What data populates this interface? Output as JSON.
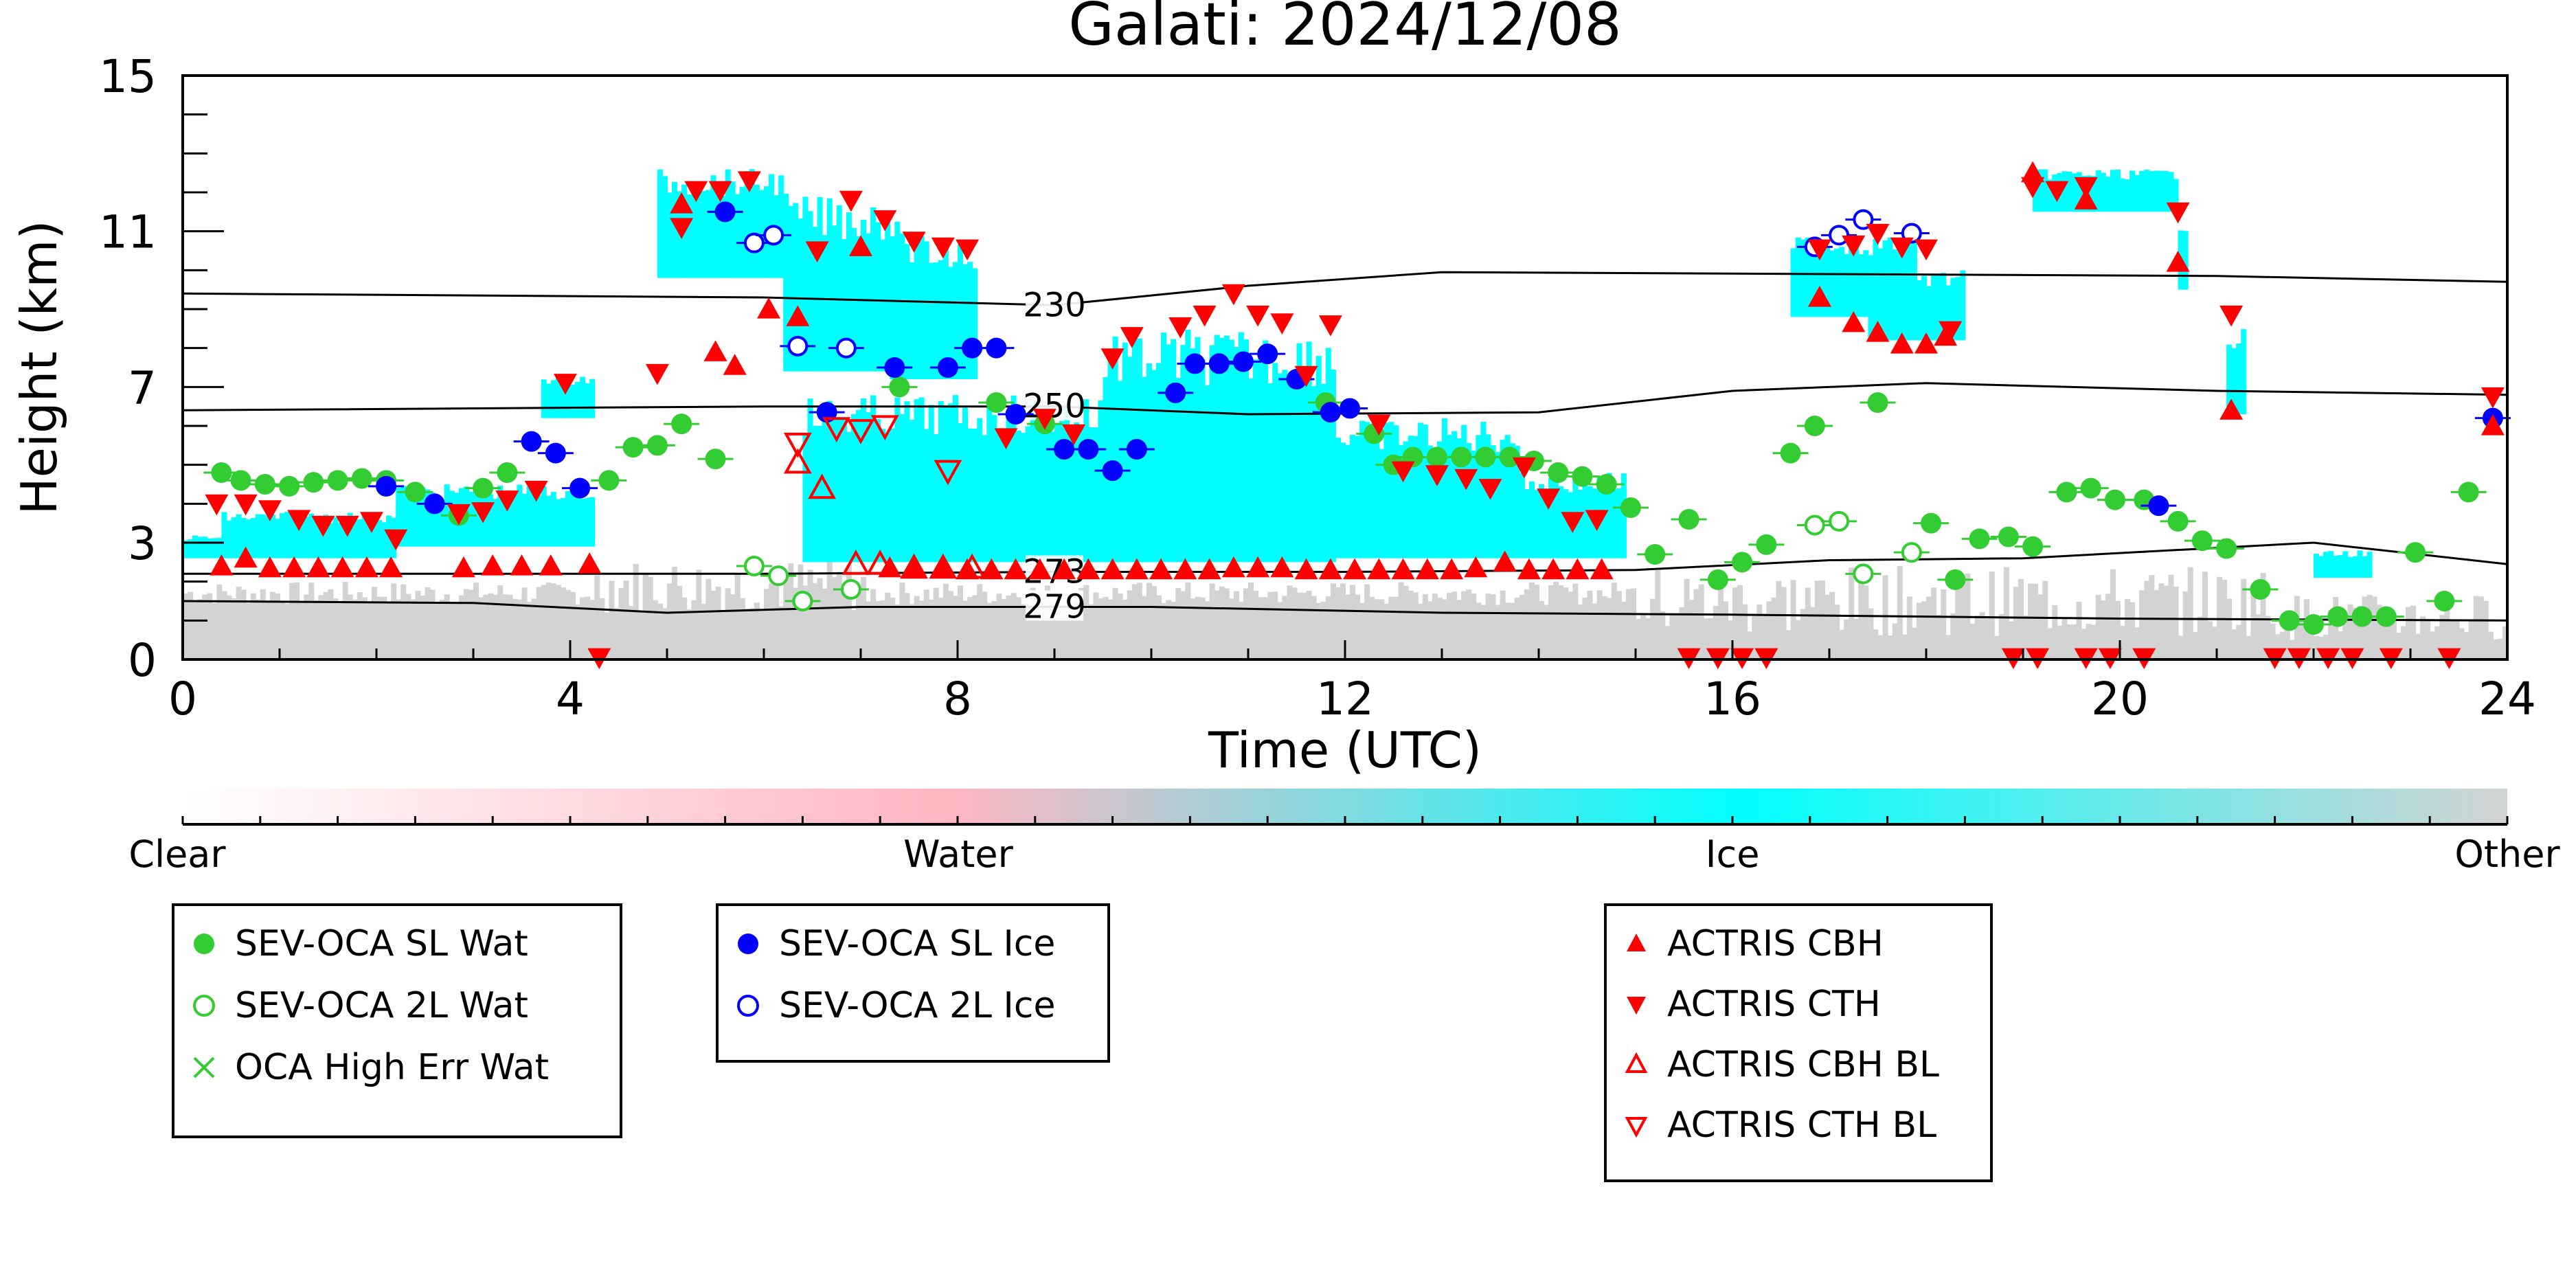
{
  "chart_data": {
    "type": "scatter",
    "title": "Galati: 2024/12/08",
    "xlabel": "Time (UTC)",
    "ylabel": "Height (km)",
    "xlim": [
      0,
      24
    ],
    "ylim": [
      0,
      15
    ],
    "x_ticks": [
      "0",
      "4",
      "8",
      "12",
      "16",
      "20",
      "24"
    ],
    "y_ticks": [
      "0",
      "3",
      "7",
      "11",
      "15"
    ],
    "grid": false,
    "background_field": "cloud classification (clear / water / ice / other)",
    "colorbar": {
      "labels": [
        "Clear",
        "Water",
        "Ice",
        "Other"
      ],
      "colors": [
        "#ffffff",
        "#ffb6c1",
        "#00ffff",
        "#d3d3d3"
      ]
    },
    "isotherms": [
      {
        "label": "230",
        "points": [
          [
            0,
            9.4
          ],
          [
            6,
            9.3
          ],
          [
            9,
            9.1
          ],
          [
            11,
            9.6
          ],
          [
            13,
            9.95
          ],
          [
            17,
            9.9
          ],
          [
            21,
            9.85
          ],
          [
            24,
            9.7
          ]
        ]
      },
      {
        "label": "250",
        "points": [
          [
            0,
            6.4
          ],
          [
            6,
            6.5
          ],
          [
            9,
            6.5
          ],
          [
            11,
            6.3
          ],
          [
            14,
            6.35
          ],
          [
            16,
            6.9
          ],
          [
            18,
            7.1
          ],
          [
            21,
            6.9
          ],
          [
            24,
            6.8
          ]
        ]
      },
      {
        "label": "273",
        "points": [
          [
            0,
            2.2
          ],
          [
            6,
            2.2
          ],
          [
            9,
            2.25
          ],
          [
            12,
            2.25
          ],
          [
            15,
            2.3
          ],
          [
            17,
            2.55
          ],
          [
            19,
            2.6
          ],
          [
            22,
            3.0
          ],
          [
            24,
            2.45
          ]
        ]
      },
      {
        "label": "279",
        "points": [
          [
            0,
            1.5
          ],
          [
            3,
            1.45
          ],
          [
            5,
            1.2
          ],
          [
            7,
            1.35
          ],
          [
            10,
            1.35
          ],
          [
            13,
            1.2
          ],
          [
            16,
            1.15
          ],
          [
            20,
            1.05
          ],
          [
            24,
            1.0
          ]
        ]
      }
    ],
    "series": [
      {
        "name": "SEV-OCA SL Wat",
        "color": "#33cc33",
        "marker": "filled-circle",
        "points": [
          [
            0.4,
            4.8
          ],
          [
            0.6,
            4.6
          ],
          [
            0.85,
            4.5
          ],
          [
            1.1,
            4.45
          ],
          [
            1.35,
            4.55
          ],
          [
            1.6,
            4.6
          ],
          [
            1.85,
            4.65
          ],
          [
            2.1,
            4.6
          ],
          [
            2.4,
            4.3
          ],
          [
            2.85,
            3.7
          ],
          [
            3.1,
            4.4
          ],
          [
            3.35,
            4.8
          ],
          [
            4.4,
            4.6
          ],
          [
            4.65,
            5.45
          ],
          [
            4.9,
            5.5
          ],
          [
            5.15,
            6.05
          ],
          [
            5.5,
            5.15
          ],
          [
            7.4,
            7.0
          ],
          [
            8.4,
            6.6
          ],
          [
            8.9,
            6.05
          ],
          [
            11.8,
            6.6
          ],
          [
            12.3,
            5.8
          ],
          [
            12.5,
            5.0
          ],
          [
            12.7,
            5.2
          ],
          [
            12.95,
            5.2
          ],
          [
            13.2,
            5.2
          ],
          [
            13.45,
            5.2
          ],
          [
            13.7,
            5.2
          ],
          [
            13.95,
            5.1
          ],
          [
            14.2,
            4.8
          ],
          [
            14.45,
            4.7
          ],
          [
            14.7,
            4.5
          ],
          [
            14.95,
            3.9
          ],
          [
            15.2,
            2.7
          ],
          [
            15.55,
            3.6
          ],
          [
            15.85,
            2.05
          ],
          [
            16.1,
            2.5
          ],
          [
            16.35,
            2.95
          ],
          [
            16.6,
            5.3
          ],
          [
            16.85,
            6.0
          ],
          [
            17.5,
            6.6
          ],
          [
            18.05,
            3.5
          ],
          [
            18.3,
            2.05
          ],
          [
            18.55,
            3.1
          ],
          [
            18.85,
            3.15
          ],
          [
            19.1,
            2.9
          ],
          [
            19.45,
            4.3
          ],
          [
            19.7,
            4.4
          ],
          [
            19.95,
            4.1
          ],
          [
            20.25,
            4.1
          ],
          [
            20.6,
            3.55
          ],
          [
            20.85,
            3.05
          ],
          [
            21.1,
            2.85
          ],
          [
            21.45,
            1.8
          ],
          [
            21.75,
            1.0
          ],
          [
            22.0,
            0.9
          ],
          [
            22.25,
            1.1
          ],
          [
            22.5,
            1.1
          ],
          [
            22.75,
            1.1
          ],
          [
            23.05,
            2.75
          ],
          [
            23.35,
            1.5
          ],
          [
            23.6,
            4.3
          ]
        ]
      },
      {
        "name": "SEV-OCA 2L Wat",
        "color": "#33cc33",
        "marker": "open-circle",
        "points": [
          [
            5.9,
            2.4
          ],
          [
            6.15,
            2.15
          ],
          [
            6.4,
            1.5
          ],
          [
            6.9,
            1.8
          ],
          [
            16.85,
            3.45
          ],
          [
            17.1,
            3.55
          ],
          [
            17.35,
            2.2
          ],
          [
            17.85,
            2.75
          ]
        ]
      },
      {
        "name": "OCA High Err Wat",
        "color": "#33cc33",
        "marker": "x",
        "points": []
      },
      {
        "name": "SEV-OCA SL Ice",
        "color": "#0000ff",
        "marker": "filled-circle",
        "points": [
          [
            2.1,
            4.45
          ],
          [
            2.6,
            4.0
          ],
          [
            3.6,
            5.6
          ],
          [
            3.85,
            5.3
          ],
          [
            4.1,
            4.4
          ],
          [
            5.6,
            11.5
          ],
          [
            6.65,
            6.35
          ],
          [
            7.35,
            7.5
          ],
          [
            7.9,
            7.5
          ],
          [
            8.15,
            8.0
          ],
          [
            8.4,
            8.0
          ],
          [
            8.6,
            6.3
          ],
          [
            9.1,
            5.4
          ],
          [
            9.35,
            5.4
          ],
          [
            9.6,
            4.85
          ],
          [
            9.85,
            5.4
          ],
          [
            10.25,
            6.85
          ],
          [
            10.45,
            7.6
          ],
          [
            10.7,
            7.6
          ],
          [
            10.95,
            7.65
          ],
          [
            11.2,
            7.85
          ],
          [
            11.5,
            7.2
          ],
          [
            11.85,
            6.35
          ],
          [
            12.05,
            6.45
          ],
          [
            20.4,
            3.95
          ],
          [
            23.85,
            6.2
          ]
        ]
      },
      {
        "name": "SEV-OCA 2L Ice",
        "color": "#0000ff",
        "marker": "open-circle",
        "points": [
          [
            5.9,
            10.7
          ],
          [
            6.1,
            10.9
          ],
          [
            6.35,
            8.05
          ],
          [
            6.85,
            8.0
          ],
          [
            16.85,
            10.6
          ],
          [
            17.1,
            10.9
          ],
          [
            17.35,
            11.3
          ],
          [
            17.85,
            10.95
          ]
        ]
      },
      {
        "name": "ACTRIS CBH",
        "color": "#ff0000",
        "marker": "triangle-up",
        "points": [
          [
            0.4,
            2.4
          ],
          [
            0.65,
            2.6
          ],
          [
            0.9,
            2.35
          ],
          [
            1.15,
            2.35
          ],
          [
            1.4,
            2.35
          ],
          [
            1.65,
            2.35
          ],
          [
            1.9,
            2.35
          ],
          [
            2.15,
            2.35
          ],
          [
            2.9,
            2.35
          ],
          [
            3.2,
            2.4
          ],
          [
            3.5,
            2.4
          ],
          [
            3.8,
            2.4
          ],
          [
            4.2,
            2.45
          ],
          [
            5.15,
            11.7
          ],
          [
            5.5,
            7.9
          ],
          [
            5.7,
            7.55
          ],
          [
            6.05,
            9.0
          ],
          [
            6.35,
            8.8
          ],
          [
            7.0,
            10.6
          ],
          [
            7.3,
            2.35
          ],
          [
            7.55,
            2.35
          ],
          [
            7.85,
            2.35
          ],
          [
            8.1,
            2.3
          ],
          [
            8.35,
            2.3
          ],
          [
            8.6,
            2.3
          ],
          [
            8.85,
            2.3
          ],
          [
            9.1,
            2.3
          ],
          [
            9.35,
            2.3
          ],
          [
            9.6,
            2.3
          ],
          [
            9.85,
            2.3
          ],
          [
            10.1,
            2.3
          ],
          [
            10.35,
            2.3
          ],
          [
            10.6,
            2.3
          ],
          [
            10.85,
            2.35
          ],
          [
            11.1,
            2.35
          ],
          [
            11.35,
            2.35
          ],
          [
            11.6,
            2.3
          ],
          [
            11.85,
            2.3
          ],
          [
            12.1,
            2.3
          ],
          [
            12.35,
            2.3
          ],
          [
            12.6,
            2.3
          ],
          [
            12.85,
            2.3
          ],
          [
            13.1,
            2.3
          ],
          [
            13.35,
            2.35
          ],
          [
            13.65,
            2.5
          ],
          [
            13.9,
            2.3
          ],
          [
            14.15,
            2.3
          ],
          [
            14.4,
            2.3
          ],
          [
            14.65,
            2.3
          ],
          [
            16.9,
            9.3
          ],
          [
            17.25,
            8.65
          ],
          [
            17.5,
            8.4
          ],
          [
            17.75,
            8.1
          ],
          [
            18.0,
            8.1
          ],
          [
            18.2,
            8.3
          ],
          [
            19.1,
            12.5
          ],
          [
            19.65,
            11.8
          ],
          [
            20.6,
            10.2
          ],
          [
            21.15,
            6.4
          ],
          [
            23.85,
            6.0
          ]
        ]
      },
      {
        "name": "ACTRIS CTH",
        "color": "#ff0000",
        "marker": "triangle-down",
        "points": [
          [
            0.35,
            4.0
          ],
          [
            0.65,
            4.0
          ],
          [
            0.9,
            3.85
          ],
          [
            1.2,
            3.6
          ],
          [
            1.45,
            3.45
          ],
          [
            1.7,
            3.45
          ],
          [
            1.95,
            3.55
          ],
          [
            2.2,
            3.1
          ],
          [
            2.85,
            3.75
          ],
          [
            3.1,
            3.8
          ],
          [
            3.35,
            4.1
          ],
          [
            3.65,
            4.35
          ],
          [
            3.95,
            7.1
          ],
          [
            4.3,
            0.05
          ],
          [
            4.9,
            7.35
          ],
          [
            5.15,
            11.1
          ],
          [
            5.3,
            12.05
          ],
          [
            5.55,
            12.05
          ],
          [
            5.85,
            12.3
          ],
          [
            6.55,
            10.5
          ],
          [
            6.9,
            11.8
          ],
          [
            7.25,
            11.3
          ],
          [
            7.55,
            10.75
          ],
          [
            7.85,
            10.6
          ],
          [
            8.1,
            10.55
          ],
          [
            8.5,
            5.7
          ],
          [
            8.9,
            6.2
          ],
          [
            9.2,
            5.8
          ],
          [
            9.6,
            7.75
          ],
          [
            9.8,
            8.3
          ],
          [
            10.3,
            8.55
          ],
          [
            10.55,
            8.85
          ],
          [
            10.85,
            9.4
          ],
          [
            11.1,
            8.85
          ],
          [
            11.35,
            8.65
          ],
          [
            11.6,
            7.3
          ],
          [
            11.85,
            8.6
          ],
          [
            12.35,
            6.05
          ],
          [
            12.6,
            4.85
          ],
          [
            12.95,
            4.75
          ],
          [
            13.25,
            4.65
          ],
          [
            13.5,
            4.4
          ],
          [
            13.85,
            4.95
          ],
          [
            14.1,
            4.15
          ],
          [
            14.35,
            3.55
          ],
          [
            14.6,
            3.6
          ],
          [
            15.55,
            0.05
          ],
          [
            15.85,
            0.05
          ],
          [
            16.1,
            0.05
          ],
          [
            16.35,
            0.05
          ],
          [
            16.9,
            10.55
          ],
          [
            17.25,
            10.65
          ],
          [
            17.5,
            10.95
          ],
          [
            17.75,
            10.6
          ],
          [
            18.0,
            10.55
          ],
          [
            18.25,
            8.45
          ],
          [
            18.9,
            0.05
          ],
          [
            19.15,
            0.05
          ],
          [
            19.1,
            12.15
          ],
          [
            19.35,
            12.05
          ],
          [
            19.65,
            0.05
          ],
          [
            19.9,
            0.05
          ],
          [
            20.25,
            0.05
          ],
          [
            19.65,
            12.15
          ],
          [
            20.6,
            11.5
          ],
          [
            21.15,
            8.85
          ],
          [
            21.6,
            0.05
          ],
          [
            21.85,
            0.05
          ],
          [
            22.15,
            0.05
          ],
          [
            22.4,
            0.05
          ],
          [
            22.8,
            0.05
          ],
          [
            23.4,
            0.05
          ],
          [
            23.85,
            6.75
          ]
        ]
      },
      {
        "name": "ACTRIS CBH BL",
        "color": "#ff0000",
        "marker": "open-triangle-up",
        "points": [
          [
            6.35,
            5.05
          ],
          [
            6.6,
            4.4
          ],
          [
            6.95,
            2.45
          ],
          [
            7.2,
            2.45
          ],
          [
            7.55,
            2.35
          ],
          [
            7.85,
            2.35
          ],
          [
            8.15,
            2.35
          ]
        ]
      },
      {
        "name": "ACTRIS CTH BL",
        "color": "#ff0000",
        "marker": "open-triangle-down",
        "points": [
          [
            6.35,
            5.55
          ],
          [
            6.75,
            5.95
          ],
          [
            7.0,
            5.9
          ],
          [
            7.25,
            6.0
          ],
          [
            7.9,
            4.85
          ]
        ]
      }
    ],
    "legend": [
      [
        "SEV-OCA SL Wat",
        "SEV-OCA 2L Wat",
        "OCA High Err Wat"
      ],
      [
        "SEV-OCA SL Ice",
        "SEV-OCA 2L Ice"
      ],
      [
        "ACTRIS CBH",
        "ACTRIS CTH",
        "ACTRIS CBH BL",
        "ACTRIS CTH BL"
      ]
    ]
  }
}
